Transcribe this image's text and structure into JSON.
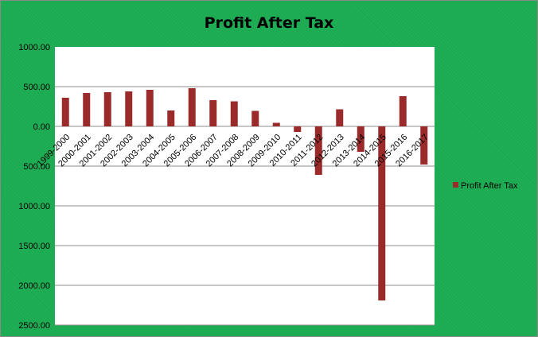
{
  "chart_data": {
    "type": "bar",
    "title": "Profit After Tax",
    "xlabel": "",
    "ylabel": "",
    "categories": [
      "1999-2000",
      "2000-2001",
      "2001-2002",
      "2002-2003",
      "2003-2004",
      "2004-2005",
      "2005-2006",
      "2006-2007",
      "2007-2008",
      "2008-2009",
      "2009-2010",
      "2010-2011",
      "2011-2012",
      "2012-2013",
      "2013-2014",
      "2014-2015",
      "2015-2016",
      "2016-2017"
    ],
    "series": [
      {
        "name": "Profit After Tax",
        "values": [
          360,
          420,
          430,
          440,
          460,
          200,
          480,
          330,
          315,
          195,
          45,
          -70,
          -610,
          215,
          -320,
          -2190,
          380,
          -480
        ]
      }
    ],
    "ylim": [
      -2500,
      1000
    ],
    "yticks": [
      1000,
      500,
      0,
      -500,
      -1000,
      -1500,
      -2000,
      -2500
    ],
    "ytick_labels": [
      "1000.00",
      "500.00",
      "0.00",
      "500.00",
      "1000.00",
      "1500.00",
      "2000.00",
      "2500.00"
    ],
    "grid": true,
    "legend_position": "right",
    "colors": {
      "bar": "#9b2b2b",
      "plot_background": "#ffffff",
      "chart_background": "#1eaf55",
      "gridline": "#8c8c8c"
    }
  }
}
